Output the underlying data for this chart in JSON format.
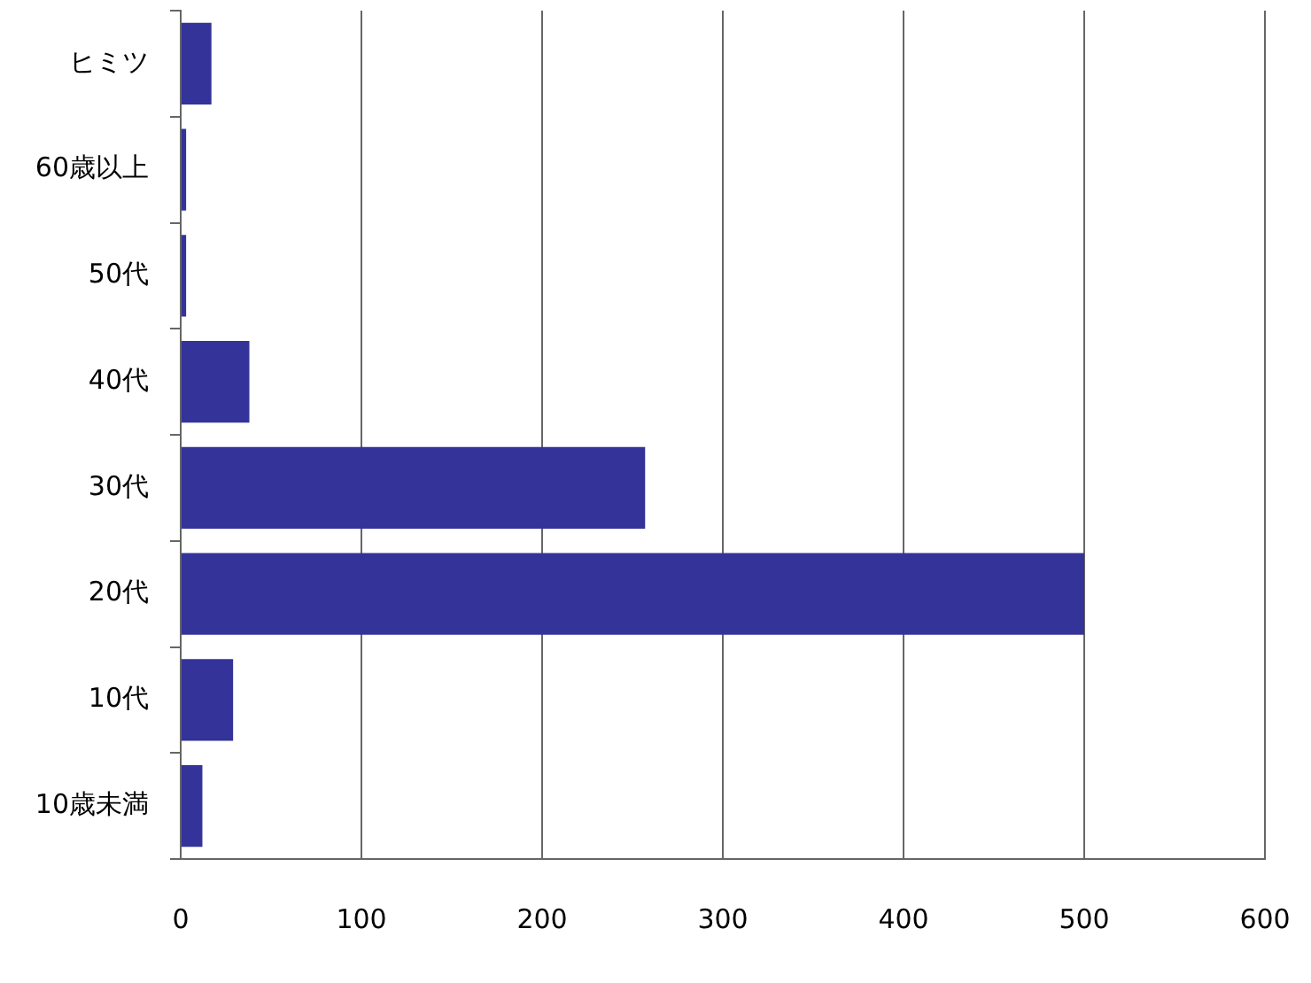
{
  "chart_data": {
    "type": "bar",
    "orientation": "horizontal",
    "categories": [
      "ヒミツ",
      "60歳以上",
      "50代",
      "40代",
      "30代",
      "20代",
      "10代",
      "10歳未満"
    ],
    "values": [
      17,
      3,
      3,
      38,
      257,
      500,
      29,
      12
    ],
    "color": "#333399",
    "xlim": [
      0,
      600
    ],
    "xticks": [
      0,
      100,
      200,
      300,
      400,
      500,
      600
    ],
    "grid": "x",
    "legend": false
  }
}
